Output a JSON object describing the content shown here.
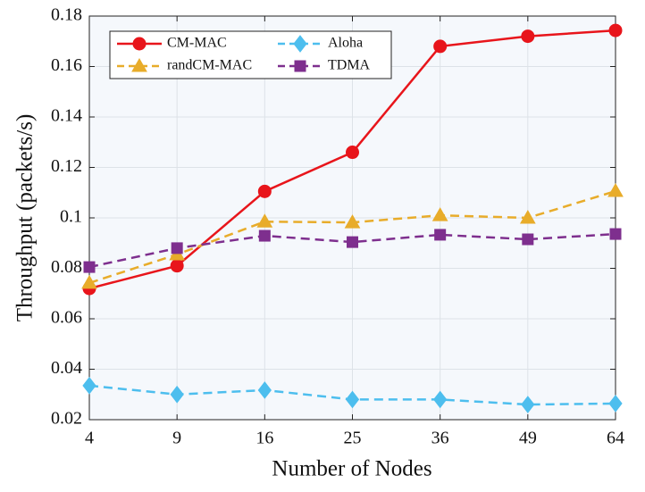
{
  "chart_data": {
    "type": "line",
    "xlabel": "Number of Nodes",
    "ylabel": "Throughput (packets/s)",
    "categories": [
      "4",
      "9",
      "16",
      "25",
      "36",
      "49",
      "64"
    ],
    "series": [
      {
        "name": "CM-MAC",
        "color": "#e8151b",
        "marker": "circle",
        "dashed": false,
        "values": [
          0.072,
          0.081,
          0.1105,
          0.126,
          0.168,
          0.172,
          0.1743
        ]
      },
      {
        "name": "randCM-MAC",
        "color": "#e8ac2a",
        "marker": "triangle",
        "dashed": true,
        "values": [
          0.0742,
          0.0855,
          0.0985,
          0.0982,
          0.101,
          0.1,
          0.1106
        ]
      },
      {
        "name": "Aloha",
        "color": "#4dbeee",
        "marker": "diamond",
        "dashed": true,
        "values": [
          0.0335,
          0.03,
          0.0317,
          0.028,
          0.028,
          0.026,
          0.0264
        ]
      },
      {
        "name": "TDMA",
        "color": "#7e2f8e",
        "marker": "square",
        "dashed": true,
        "values": [
          0.0805,
          0.088,
          0.0929,
          0.0904,
          0.0933,
          0.0915,
          0.0936
        ]
      }
    ],
    "ylim": [
      0.02,
      0.18
    ],
    "yticks": [
      0.02,
      0.04,
      0.06,
      0.08,
      0.1,
      0.12,
      0.14,
      0.16,
      0.18
    ],
    "grid": true,
    "legend": "upper left"
  }
}
